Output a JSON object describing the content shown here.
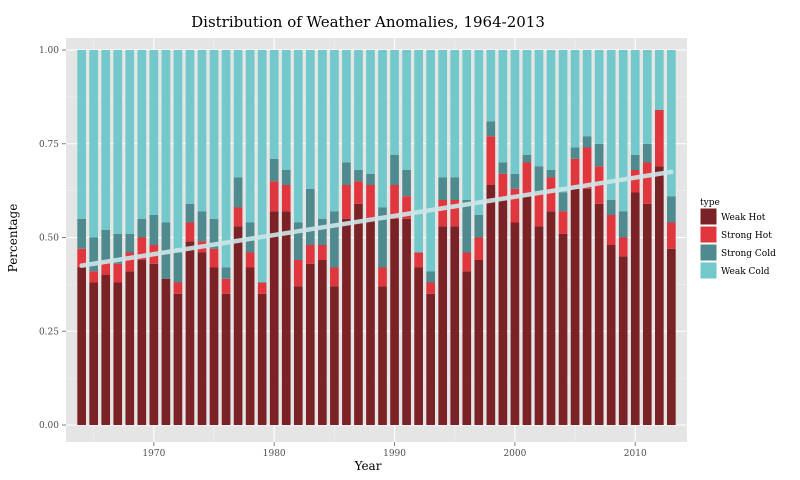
{
  "chart_data": {
    "type": "bar",
    "stacked": true,
    "title": "Distribution of Weather Anomalies, 1964-2013",
    "xlabel": "Year",
    "ylabel": "Percentage",
    "ylim": [
      0,
      1
    ],
    "xlim": [
      1962.7,
      2014.3
    ],
    "y_ticks": [
      0,
      0.25,
      0.5,
      0.75,
      1
    ],
    "y_tick_labels": [
      "0.00",
      "0.25",
      "0.50",
      "0.75",
      "1.00"
    ],
    "x_ticks": [
      1970,
      1980,
      1990,
      2000,
      2010
    ],
    "x_tick_labels": [
      "1970",
      "1980",
      "1990",
      "2000",
      "2010"
    ],
    "grid": true,
    "legend_title": "type",
    "legend_position": "right",
    "x": [
      1964,
      1965,
      1966,
      1967,
      1968,
      1969,
      1970,
      1971,
      1972,
      1973,
      1974,
      1975,
      1976,
      1977,
      1978,
      1979,
      1980,
      1981,
      1982,
      1983,
      1984,
      1985,
      1986,
      1987,
      1988,
      1989,
      1990,
      1991,
      1992,
      1993,
      1994,
      1995,
      1996,
      1997,
      1998,
      1999,
      2000,
      2001,
      2002,
      2003,
      2004,
      2005,
      2006,
      2007,
      2008,
      2009,
      2010,
      2011,
      2012,
      2013
    ],
    "series": [
      {
        "name": "Weak Hot",
        "color": "#7b2226",
        "values": [
          0.42,
          0.38,
          0.4,
          0.38,
          0.41,
          0.44,
          0.43,
          0.39,
          0.35,
          0.49,
          0.46,
          0.42,
          0.35,
          0.53,
          0.42,
          0.35,
          0.57,
          0.57,
          0.37,
          0.43,
          0.44,
          0.37,
          0.55,
          0.59,
          0.55,
          0.37,
          0.55,
          0.55,
          0.42,
          0.35,
          0.53,
          0.53,
          0.41,
          0.44,
          0.64,
          0.6,
          0.54,
          0.61,
          0.53,
          0.57,
          0.51,
          0.63,
          0.63,
          0.59,
          0.48,
          0.45,
          0.62,
          0.59,
          0.69,
          0.47
        ]
      },
      {
        "name": "Strong Hot",
        "color": "#e0363d",
        "values": [
          0.05,
          0.03,
          0.04,
          0.05,
          0.05,
          0.06,
          0.05,
          0.0,
          0.03,
          0.05,
          0.03,
          0.05,
          0.04,
          0.05,
          0.04,
          0.03,
          0.08,
          0.07,
          0.07,
          0.05,
          0.04,
          0.05,
          0.09,
          0.06,
          0.09,
          0.05,
          0.09,
          0.06,
          0.04,
          0.03,
          0.07,
          0.07,
          0.05,
          0.06,
          0.13,
          0.07,
          0.09,
          0.09,
          0.09,
          0.09,
          0.06,
          0.08,
          0.11,
          0.1,
          0.08,
          0.05,
          0.06,
          0.11,
          0.15,
          0.07
        ]
      },
      {
        "name": "Strong Cold",
        "color": "#4e8a8e",
        "values": [
          0.08,
          0.09,
          0.08,
          0.08,
          0.05,
          0.05,
          0.08,
          0.15,
          0.08,
          0.05,
          0.08,
          0.08,
          0.03,
          0.08,
          0.08,
          0.0,
          0.06,
          0.04,
          0.1,
          0.15,
          0.07,
          0.15,
          0.06,
          0.03,
          0.03,
          0.16,
          0.08,
          0.07,
          0.0,
          0.03,
          0.06,
          0.06,
          0.14,
          0.06,
          0.04,
          0.03,
          0.04,
          0.02,
          0.07,
          0.02,
          0.05,
          0.03,
          0.03,
          0.06,
          0.04,
          0.07,
          0.04,
          0.05,
          0.0,
          0.07
        ]
      },
      {
        "name": "Weak Cold",
        "color": "#72c8ca",
        "values": [
          0.45,
          0.5,
          0.48,
          0.49,
          0.49,
          0.45,
          0.44,
          0.46,
          0.54,
          0.41,
          0.43,
          0.45,
          0.58,
          0.34,
          0.46,
          0.62,
          0.29,
          0.32,
          0.46,
          0.37,
          0.45,
          0.43,
          0.3,
          0.32,
          0.33,
          0.42,
          0.28,
          0.32,
          0.54,
          0.59,
          0.34,
          0.34,
          0.4,
          0.44,
          0.19,
          0.3,
          0.33,
          0.28,
          0.31,
          0.32,
          0.38,
          0.26,
          0.23,
          0.25,
          0.4,
          0.43,
          0.28,
          0.25,
          0.16,
          0.39
        ]
      }
    ],
    "trend_line": {
      "start": [
        1964,
        0.425
      ],
      "end": [
        2013,
        0.675
      ],
      "color": "#cde6e8"
    }
  }
}
